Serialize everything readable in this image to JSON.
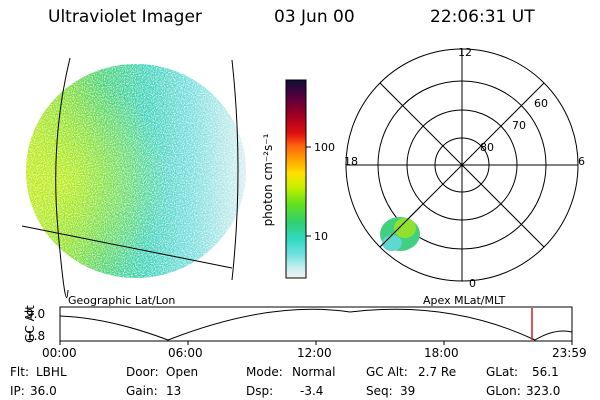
{
  "header": {
    "instrument": "Ultraviolet Imager",
    "date": "03 Jun 00",
    "time": "22:06:31 UT"
  },
  "colorbar": {
    "label": "photon cm⁻²s⁻¹",
    "ticks": [
      "100",
      "10"
    ],
    "scale": "log",
    "colors": [
      "#101030",
      "#500040",
      "#a00020",
      "#e01010",
      "#ff6010",
      "#ffa000",
      "#ffe000",
      "#c8f000",
      "#60e020",
      "#30d070",
      "#30d8c0",
      "#70e0e0",
      "#c8eef0",
      "#f0f0f0"
    ]
  },
  "geo_panel": {
    "label": "Geographic Lat/Lon"
  },
  "polar_panel": {
    "label": "Apex MLat/MLT",
    "mlt_labels": {
      "top": "12",
      "left": "18",
      "right": "6",
      "bottom": "0"
    },
    "lat_labels": [
      "60",
      "70",
      "80"
    ]
  },
  "timeline": {
    "ylabel": "GC Alt",
    "y_ticks": [
      "9.0",
      "1.8"
    ],
    "x_ticks": [
      "00:00",
      "06:00",
      "12:00",
      "18:00",
      "23:59"
    ],
    "current_time_hours": 22.11
  },
  "info": {
    "flt_label": "Flt:",
    "flt_value": "LBHL",
    "ip_label": "IP:",
    "ip_value": "36.0",
    "door_label": "Door:",
    "door_value": "Open",
    "gain_label": "Gain:",
    "gain_value": "13",
    "mode_label": "Mode:",
    "mode_value": "Normal",
    "dsp_label": "Dsp:",
    "dsp_value": "-3.4",
    "gcalt_label": "GC Alt:",
    "gcalt_value": "2.7 Re",
    "seq_label": "Seq:",
    "seq_value": "39",
    "glat_label": "GLat:",
    "glat_value": "56.1",
    "glon_label": "GLon:",
    "glon_value": "323.0"
  }
}
